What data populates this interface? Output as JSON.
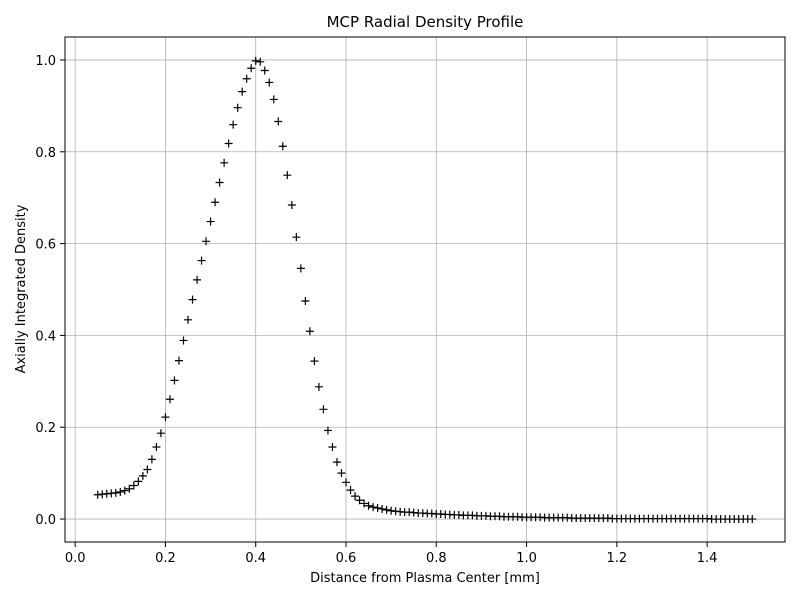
{
  "chart_data": {
    "type": "scatter",
    "title": "MCP Radial Density Profile",
    "xlabel": "Distance from Plasma Center [mm]",
    "ylabel": "Axially Integrated Density",
    "xlim": [
      -0.0225,
      1.5725
    ],
    "ylim": [
      -0.05,
      1.05
    ],
    "xticks": [
      0.0,
      0.2,
      0.4,
      0.6,
      0.8,
      1.0,
      1.2,
      1.4
    ],
    "xtick_labels": [
      "0.0",
      "0.2",
      "0.4",
      "0.6",
      "0.8",
      "1.0",
      "1.2",
      "1.4"
    ],
    "yticks": [
      0.0,
      0.2,
      0.4,
      0.6,
      0.8,
      1.0
    ],
    "ytick_labels": [
      "0.0",
      "0.2",
      "0.4",
      "0.6",
      "0.8",
      "1.0"
    ],
    "grid": true,
    "marker": "+",
    "color": "#000000",
    "grid_color": "#b0b0b0",
    "x": [
      0.05,
      0.06,
      0.07,
      0.08,
      0.09,
      0.1,
      0.11,
      0.12,
      0.13,
      0.14,
      0.15,
      0.16,
      0.17,
      0.18,
      0.19,
      0.2,
      0.21,
      0.22,
      0.23,
      0.24,
      0.25,
      0.26,
      0.27,
      0.28,
      0.29,
      0.3,
      0.31,
      0.32,
      0.33,
      0.34,
      0.35,
      0.36,
      0.37,
      0.38,
      0.39,
      0.4,
      0.41,
      0.42,
      0.43,
      0.44,
      0.45,
      0.46,
      0.47,
      0.48,
      0.49,
      0.5,
      0.51,
      0.52,
      0.53,
      0.54,
      0.55,
      0.56,
      0.57,
      0.58,
      0.59,
      0.6,
      0.61,
      0.62,
      0.63,
      0.64,
      0.65,
      0.66,
      0.67,
      0.68,
      0.69,
      0.7,
      0.71,
      0.72,
      0.73,
      0.74,
      0.75,
      0.76,
      0.77,
      0.78,
      0.79,
      0.8,
      0.81,
      0.82,
      0.83,
      0.84,
      0.85,
      0.86,
      0.87,
      0.88,
      0.89,
      0.9,
      0.91,
      0.92,
      0.93,
      0.94,
      0.95,
      0.96,
      0.97,
      0.98,
      0.99,
      1.0,
      1.01,
      1.02,
      1.03,
      1.04,
      1.05,
      1.06,
      1.07,
      1.08,
      1.09,
      1.1,
      1.11,
      1.12,
      1.13,
      1.14,
      1.15,
      1.16,
      1.17,
      1.18,
      1.19,
      1.2,
      1.21,
      1.22,
      1.23,
      1.24,
      1.25,
      1.26,
      1.27,
      1.28,
      1.29,
      1.3,
      1.31,
      1.32,
      1.33,
      1.34,
      1.35,
      1.36,
      1.37,
      1.38,
      1.39,
      1.4,
      1.41,
      1.42,
      1.43,
      1.44,
      1.45,
      1.46,
      1.47,
      1.48,
      1.49,
      1.5
    ],
    "y": [
      0.053,
      0.054,
      0.055,
      0.056,
      0.057,
      0.059,
      0.062,
      0.066,
      0.073,
      0.082,
      0.094,
      0.108,
      0.13,
      0.157,
      0.187,
      0.222,
      0.261,
      0.302,
      0.345,
      0.389,
      0.434,
      0.478,
      0.521,
      0.563,
      0.605,
      0.648,
      0.69,
      0.733,
      0.776,
      0.818,
      0.859,
      0.896,
      0.931,
      0.959,
      0.982,
      0.998,
      0.996,
      0.977,
      0.951,
      0.914,
      0.866,
      0.812,
      0.749,
      0.684,
      0.614,
      0.546,
      0.475,
      0.409,
      0.344,
      0.288,
      0.239,
      0.193,
      0.157,
      0.124,
      0.1,
      0.08,
      0.063,
      0.05,
      0.041,
      0.034,
      0.029,
      0.026,
      0.024,
      0.022,
      0.02,
      0.018,
      0.017,
      0.016,
      0.015,
      0.015,
      0.014,
      0.013,
      0.013,
      0.012,
      0.012,
      0.011,
      0.011,
      0.01,
      0.01,
      0.009,
      0.009,
      0.008,
      0.008,
      0.008,
      0.007,
      0.007,
      0.007,
      0.006,
      0.006,
      0.006,
      0.005,
      0.005,
      0.005,
      0.005,
      0.004,
      0.004,
      0.004,
      0.004,
      0.004,
      0.003,
      0.003,
      0.003,
      0.003,
      0.003,
      0.003,
      0.002,
      0.002,
      0.002,
      0.002,
      0.002,
      0.002,
      0.002,
      0.002,
      0.002,
      0.001,
      0.001,
      0.001,
      0.001,
      0.001,
      0.001,
      0.001,
      0.001,
      0.001,
      0.001,
      0.001,
      0.001,
      0.001,
      0.001,
      0.001,
      0.001,
      0.001,
      0.001,
      0.001,
      0.001,
      0.001,
      0.001,
      0.0,
      0.0,
      0.0,
      0.0,
      0.0,
      0.0,
      0.0,
      0.0,
      0.0,
      0.0
    ]
  }
}
